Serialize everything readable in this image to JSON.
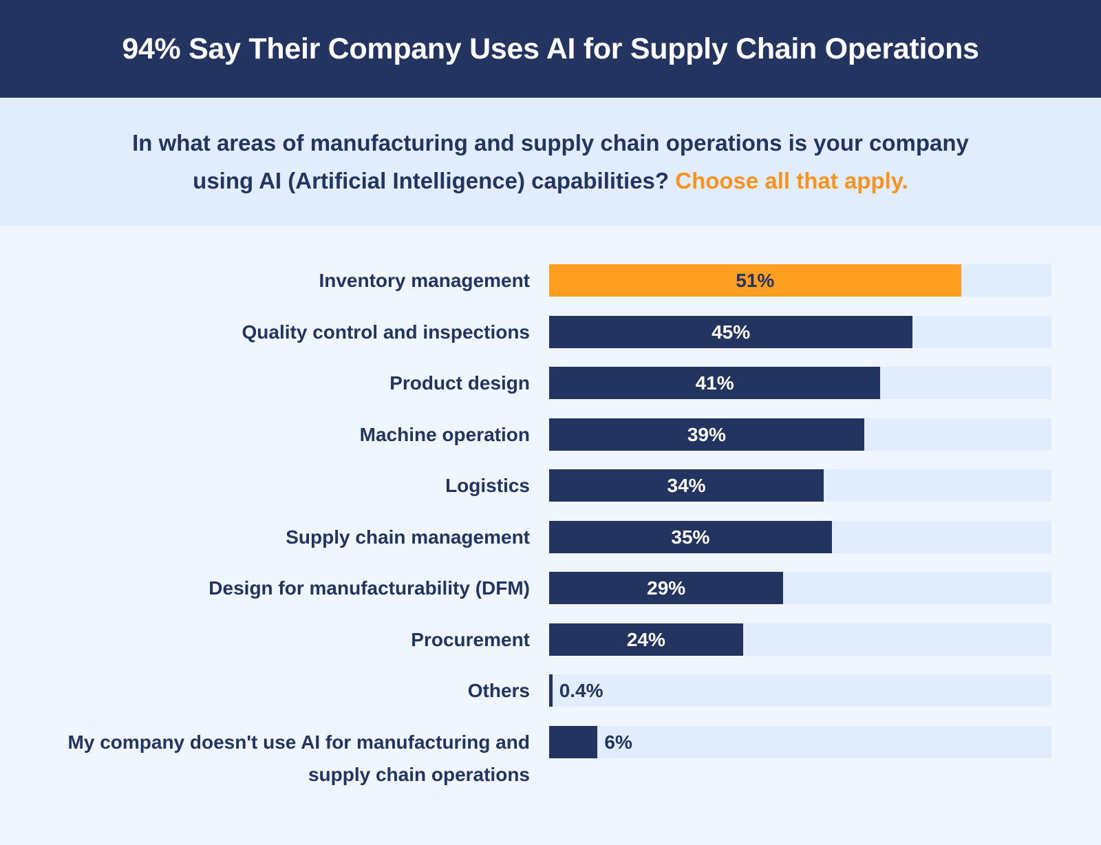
{
  "chart_data": {
    "type": "bar",
    "orientation": "horizontal",
    "title": "94% Say Their Company Uses AI for Supply Chain Operations",
    "subtitle": "In what areas of manufacturing and supply chain operations is your company using AI (Artificial Intelligence) capabilities?",
    "subtitle_note": "Choose all that apply.",
    "categories": [
      "Inventory management",
      "Quality control and inspections",
      "Product design",
      "Machine operation",
      "Logistics",
      "Supply chain management",
      "Design for manufacturability (DFM)",
      "Procurement",
      "Others",
      "My company doesn't use AI for manufacturing and supply chain operations"
    ],
    "values": [
      51,
      45,
      41,
      39,
      34,
      35,
      29,
      24,
      0.4,
      6
    ],
    "value_labels": [
      "51%",
      "45%",
      "41%",
      "39%",
      "34%",
      "35%",
      "29%",
      "24%",
      "0.4%",
      "6%"
    ],
    "colors": [
      "#ff9f22",
      "#22345f",
      "#22345f",
      "#22345f",
      "#22345f",
      "#22345f",
      "#22345f",
      "#22345f",
      "#22345f",
      "#22345f"
    ]
  }
}
